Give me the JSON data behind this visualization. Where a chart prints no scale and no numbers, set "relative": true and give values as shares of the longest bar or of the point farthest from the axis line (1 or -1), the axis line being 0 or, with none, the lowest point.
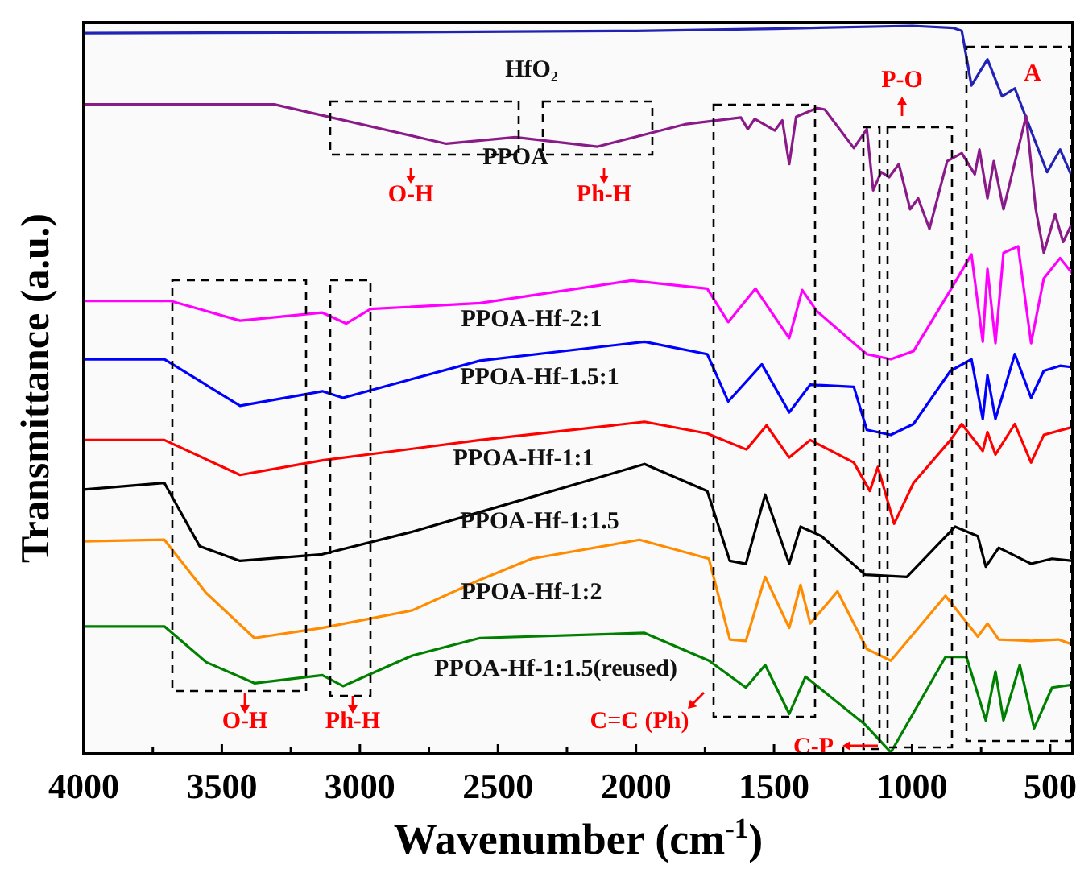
{
  "chart_data": {
    "type": "line",
    "relative": true,
    "xlabel": "Wavenumber (cm$^{-1}$)",
    "ylabel": "Transmittance (a.u.)",
    "xlim": [
      4000,
      418
    ],
    "xticks": [
      4000,
      {
        "value": 3750,
        "label": null
      },
      3500,
      {
        "value": 3250,
        "label": null
      },
      3000,
      {
        "value": 2750,
        "label": null
      },
      2500,
      {
        "value": 2250,
        "label": null
      },
      2000,
      {
        "value": 1750,
        "label": null
      },
      1500,
      {
        "value": 1250,
        "label": null
      },
      1000,
      {
        "value": 750,
        "label": null
      },
      500
    ],
    "tick_labels": "x",
    "grid": false,
    "marker": "none",
    "line_style": "solid",
    "series": [
      {
        "name": "HfO₂",
        "color": "#2222b4",
        "x": [
          4000,
          3000,
          2000,
          1500,
          1000,
          850,
          820,
          785,
          727,
          674,
          628,
          560,
          511,
          464,
          420
        ],
        "values": [
          0.99,
          0.991,
          0.993,
          0.996,
          1.0,
          0.997,
          0.993,
          0.918,
          0.954,
          0.903,
          0.914,
          0.847,
          0.799,
          0.83,
          0.792
        ]
      },
      {
        "name": "PPOA",
        "color": "#8b1a89",
        "x": [
          4000,
          3310,
          2687,
          2437,
          2139,
          1818,
          1620,
          1595,
          1570,
          1497,
          1470,
          1445,
          1420,
          1345,
          1316,
          1211,
          1164,
          1141,
          1112,
          1083,
          1048,
          1007,
          978,
          937,
          873,
          820,
          773,
          756,
          727,
          704,
          669,
          587,
          552,
          523,
          482,
          453,
          424
        ],
        "values": [
          0.892,
          0.892,
          0.838,
          0.847,
          0.834,
          0.865,
          0.874,
          0.858,
          0.872,
          0.856,
          0.87,
          0.81,
          0.875,
          0.887,
          0.885,
          0.832,
          0.858,
          0.774,
          0.799,
          0.792,
          0.81,
          0.748,
          0.763,
          0.721,
          0.814,
          0.825,
          0.796,
          0.83,
          0.763,
          0.814,
          0.748,
          0.876,
          0.748,
          0.688,
          0.741,
          0.703,
          0.726
        ]
      },
      {
        "name": "PPOA-Hf-2:1",
        "color": "#ff00ff",
        "x": [
          4000,
          3685,
          3434,
          3136,
          3049,
          2961,
          2565,
          2016,
          1742,
          1666,
          1567,
          1544,
          1445,
          1398,
          1345,
          1211,
          1164,
          1077,
          995,
          861,
          785,
          744,
          727,
          698,
          669,
          616,
          569,
          523,
          464,
          418
        ],
        "values": [
          0.622,
          0.622,
          0.595,
          0.606,
          0.591,
          0.611,
          0.619,
          0.65,
          0.639,
          0.593,
          0.639,
          0.626,
          0.571,
          0.637,
          0.608,
          0.564,
          0.549,
          0.542,
          0.553,
          0.637,
          0.686,
          0.566,
          0.666,
          0.564,
          0.688,
          0.697,
          0.564,
          0.653,
          0.681,
          0.659
        ]
      },
      {
        "name": "PPOA-Hf-1.5:1",
        "color": "#0000ff",
        "x": [
          4000,
          3708,
          3434,
          3136,
          3061,
          2565,
          1969,
          1742,
          1666,
          1544,
          1445,
          1369,
          1211,
          1164,
          1077,
          995,
          861,
          785,
          744,
          727,
          698,
          628,
          569,
          523,
          464,
          418
        ],
        "values": [
          0.542,
          0.542,
          0.478,
          0.498,
          0.489,
          0.54,
          0.566,
          0.549,
          0.484,
          0.535,
          0.469,
          0.507,
          0.504,
          0.445,
          0.438,
          0.453,
          0.526,
          0.542,
          0.46,
          0.52,
          0.46,
          0.549,
          0.489,
          0.526,
          0.533,
          0.531
        ]
      },
      {
        "name": "PPOA-Hf-1:1",
        "color": "#ff0000",
        "x": [
          4000,
          3708,
          3434,
          3136,
          2565,
          1969,
          1742,
          1600,
          1527,
          1445,
          1369,
          1211,
          1153,
          1124,
          1065,
          995,
          861,
          820,
          744,
          727,
          698,
          628,
          569,
          523,
          418
        ],
        "values": [
          0.431,
          0.431,
          0.383,
          0.403,
          0.431,
          0.456,
          0.44,
          0.418,
          0.451,
          0.407,
          0.431,
          0.4,
          0.361,
          0.394,
          0.316,
          0.372,
          0.431,
          0.453,
          0.416,
          0.442,
          0.411,
          0.453,
          0.4,
          0.438,
          0.449
        ]
      },
      {
        "name": "PPOA-Hf-1:1.5",
        "color": "#000000",
        "x": [
          4000,
          3708,
          3580,
          3434,
          3136,
          2810,
          2565,
          1969,
          1742,
          1660,
          1602,
          1532,
          1445,
          1404,
          1328,
          1170,
          1019,
          844,
          762,
          733,
          686,
          569,
          493,
          418
        ],
        "values": [
          0.363,
          0.372,
          0.285,
          0.265,
          0.274,
          0.305,
          0.332,
          0.398,
          0.361,
          0.265,
          0.261,
          0.356,
          0.261,
          0.312,
          0.299,
          0.246,
          0.243,
          0.312,
          0.299,
          0.257,
          0.283,
          0.261,
          0.268,
          0.265
        ]
      },
      {
        "name": "PPOA-Hf-1:2",
        "color": "#ff8c00",
        "x": [
          4000,
          3708,
          3557,
          3382,
          3136,
          2810,
          2565,
          2378,
          1987,
          1736,
          1660,
          1602,
          1532,
          1445,
          1404,
          1369,
          1270,
          1164,
          1077,
          879,
          762,
          727,
          686,
          569,
          470,
          418
        ],
        "values": [
          0.292,
          0.294,
          0.221,
          0.159,
          0.173,
          0.197,
          0.239,
          0.268,
          0.294,
          0.268,
          0.157,
          0.155,
          0.243,
          0.173,
          0.232,
          0.179,
          0.223,
          0.144,
          0.128,
          0.217,
          0.161,
          0.179,
          0.157,
          0.155,
          0.157,
          0.15
        ]
      },
      {
        "name": "PPOA-Hf-1:1.5(reused)",
        "color": "#008000",
        "x": [
          4000,
          3708,
          3557,
          3382,
          3136,
          3061,
          2810,
          2565,
          1969,
          1736,
          1602,
          1532,
          1445,
          1386,
          1170,
          1077,
          879,
          803,
          733,
          698,
          669,
          610,
          558,
          493,
          418
        ],
        "values": [
          0.175,
          0.175,
          0.126,
          0.097,
          0.108,
          0.093,
          0.135,
          0.159,
          0.166,
          0.128,
          0.091,
          0.122,
          0.055,
          0.106,
          0.04,
          0.002,
          0.133,
          0.133,
          0.046,
          0.113,
          0.046,
          0.122,
          0.035,
          0.091,
          0.095
        ]
      }
    ],
    "annotations": [
      "O-H",
      "Ph-H",
      "P-O",
      "A",
      "O-H",
      "Ph-H",
      "C=C (Ph)",
      "C-P"
    ]
  }
}
